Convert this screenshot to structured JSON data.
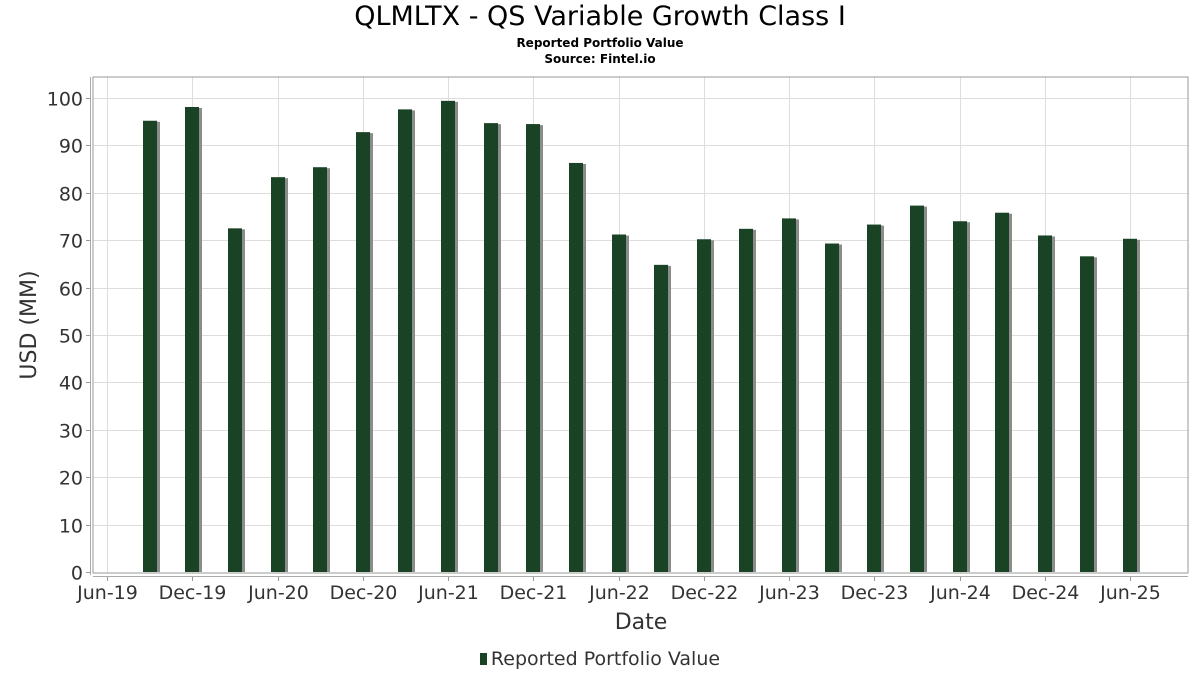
{
  "chart_data": {
    "type": "bar",
    "title": "QLMLTX - QS Variable Growth Class I",
    "subtitle": "Reported Portfolio Value",
    "source": "Source: Fintel.io",
    "xlabel": "Date",
    "ylabel": "USD (MM)",
    "ylim": [
      0,
      104
    ],
    "yticks": [
      0,
      10,
      20,
      30,
      40,
      50,
      60,
      70,
      80,
      90,
      100
    ],
    "xtick_labels": [
      "Jun-19",
      "Dec-19",
      "Jun-20",
      "Dec-20",
      "Jun-21",
      "Dec-21",
      "Jun-22",
      "Dec-22",
      "Jun-23",
      "Dec-23",
      "Jun-24",
      "Dec-24",
      "Jun-25"
    ],
    "grid": true,
    "legend_position": "bottom",
    "series": [
      {
        "name": "Reported Portfolio Value",
        "color": "#1a4224",
        "shadow_color": "#8c8c8c",
        "points": [
          {
            "date": "Sep-19",
            "value": 95.2
          },
          {
            "date": "Dec-19",
            "value": 98.1
          },
          {
            "date": "Mar-20",
            "value": 72.5
          },
          {
            "date": "Jun-20",
            "value": 83.3
          },
          {
            "date": "Sep-20",
            "value": 85.4
          },
          {
            "date": "Dec-20",
            "value": 92.8
          },
          {
            "date": "Mar-21",
            "value": 97.6
          },
          {
            "date": "Jun-21",
            "value": 99.4
          },
          {
            "date": "Sep-21",
            "value": 94.7
          },
          {
            "date": "Dec-21",
            "value": 94.5
          },
          {
            "date": "Mar-22",
            "value": 86.3
          },
          {
            "date": "Jun-22",
            "value": 71.2
          },
          {
            "date": "Sep-22",
            "value": 64.8
          },
          {
            "date": "Dec-22",
            "value": 70.2
          },
          {
            "date": "Mar-23",
            "value": 72.4
          },
          {
            "date": "Jun-23",
            "value": 74.6
          },
          {
            "date": "Sep-23",
            "value": 69.3
          },
          {
            "date": "Dec-23",
            "value": 73.3
          },
          {
            "date": "Mar-24",
            "value": 77.3
          },
          {
            "date": "Jun-24",
            "value": 74.0
          },
          {
            "date": "Sep-24",
            "value": 75.8
          },
          {
            "date": "Dec-24",
            "value": 71.0
          },
          {
            "date": "Mar-25",
            "value": 66.6
          },
          {
            "date": "Jun-25",
            "value": 70.3
          }
        ]
      }
    ]
  }
}
